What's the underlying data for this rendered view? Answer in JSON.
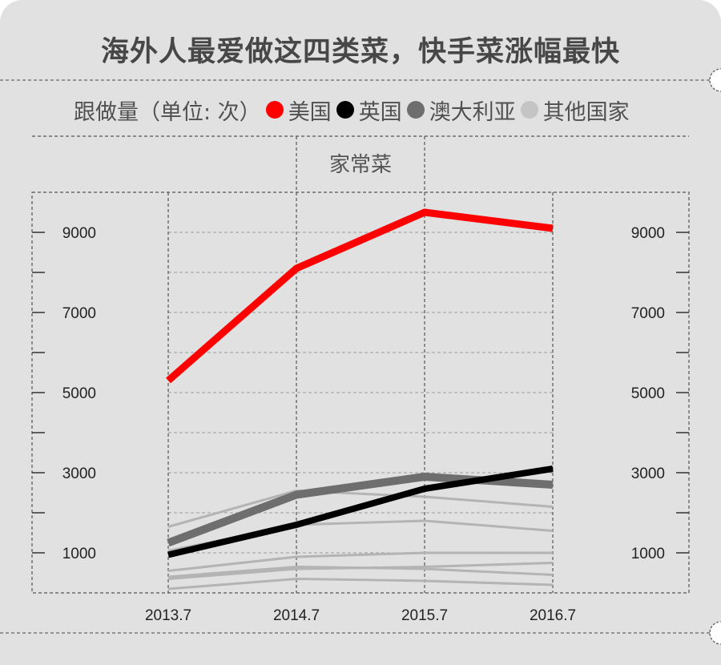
{
  "title": "海外人最爱做这四类菜，快手菜涨幅最快",
  "legend": {
    "label": "跟做量（单位: 次）",
    "items": [
      {
        "name": "美国",
        "color": "#ff0000"
      },
      {
        "name": "英国",
        "color": "#000000"
      },
      {
        "name": "澳大利亚",
        "color": "#6e6e6e"
      },
      {
        "name": "其他国家",
        "color": "#c4c4c4"
      }
    ]
  },
  "chart_data": {
    "type": "line",
    "subtitle": "家常菜",
    "x": [
      "2013.7",
      "2014.7",
      "2015.7",
      "2016.7"
    ],
    "y_ticks": [
      1000,
      3000,
      5000,
      7000,
      9000
    ],
    "ylim": [
      0,
      10000
    ],
    "grid": true,
    "series": [
      {
        "name": "其他国家",
        "color": "#b4b4b4",
        "width": 3,
        "values": [
          1650,
          2550,
          2400,
          2150
        ]
      },
      {
        "name": "其他国家",
        "color": "#b4b4b4",
        "width": 3,
        "values": [
          1050,
          1700,
          1800,
          1550
        ]
      },
      {
        "name": "其他国家",
        "color": "#b4b4b4",
        "width": 3,
        "values": [
          550,
          900,
          1000,
          1000
        ]
      },
      {
        "name": "其他国家",
        "color": "#b4b4b4",
        "width": 3,
        "values": [
          350,
          600,
          650,
          750
        ]
      },
      {
        "name": "其他国家",
        "color": "#b4b4b4",
        "width": 3,
        "values": [
          400,
          650,
          600,
          450
        ]
      },
      {
        "name": "其他国家",
        "color": "#b4b4b4",
        "width": 3,
        "values": [
          100,
          350,
          300,
          200
        ]
      },
      {
        "name": "澳大利亚",
        "color": "#6e6e6e",
        "width": 10,
        "values": [
          1250,
          2450,
          2900,
          2700
        ]
      },
      {
        "name": "英国",
        "color": "#000000",
        "width": 8,
        "values": [
          950,
          1700,
          2600,
          3100
        ]
      },
      {
        "name": "美国",
        "color": "#ff0000",
        "width": 9,
        "values": [
          5300,
          8100,
          9500,
          9100
        ]
      }
    ]
  }
}
